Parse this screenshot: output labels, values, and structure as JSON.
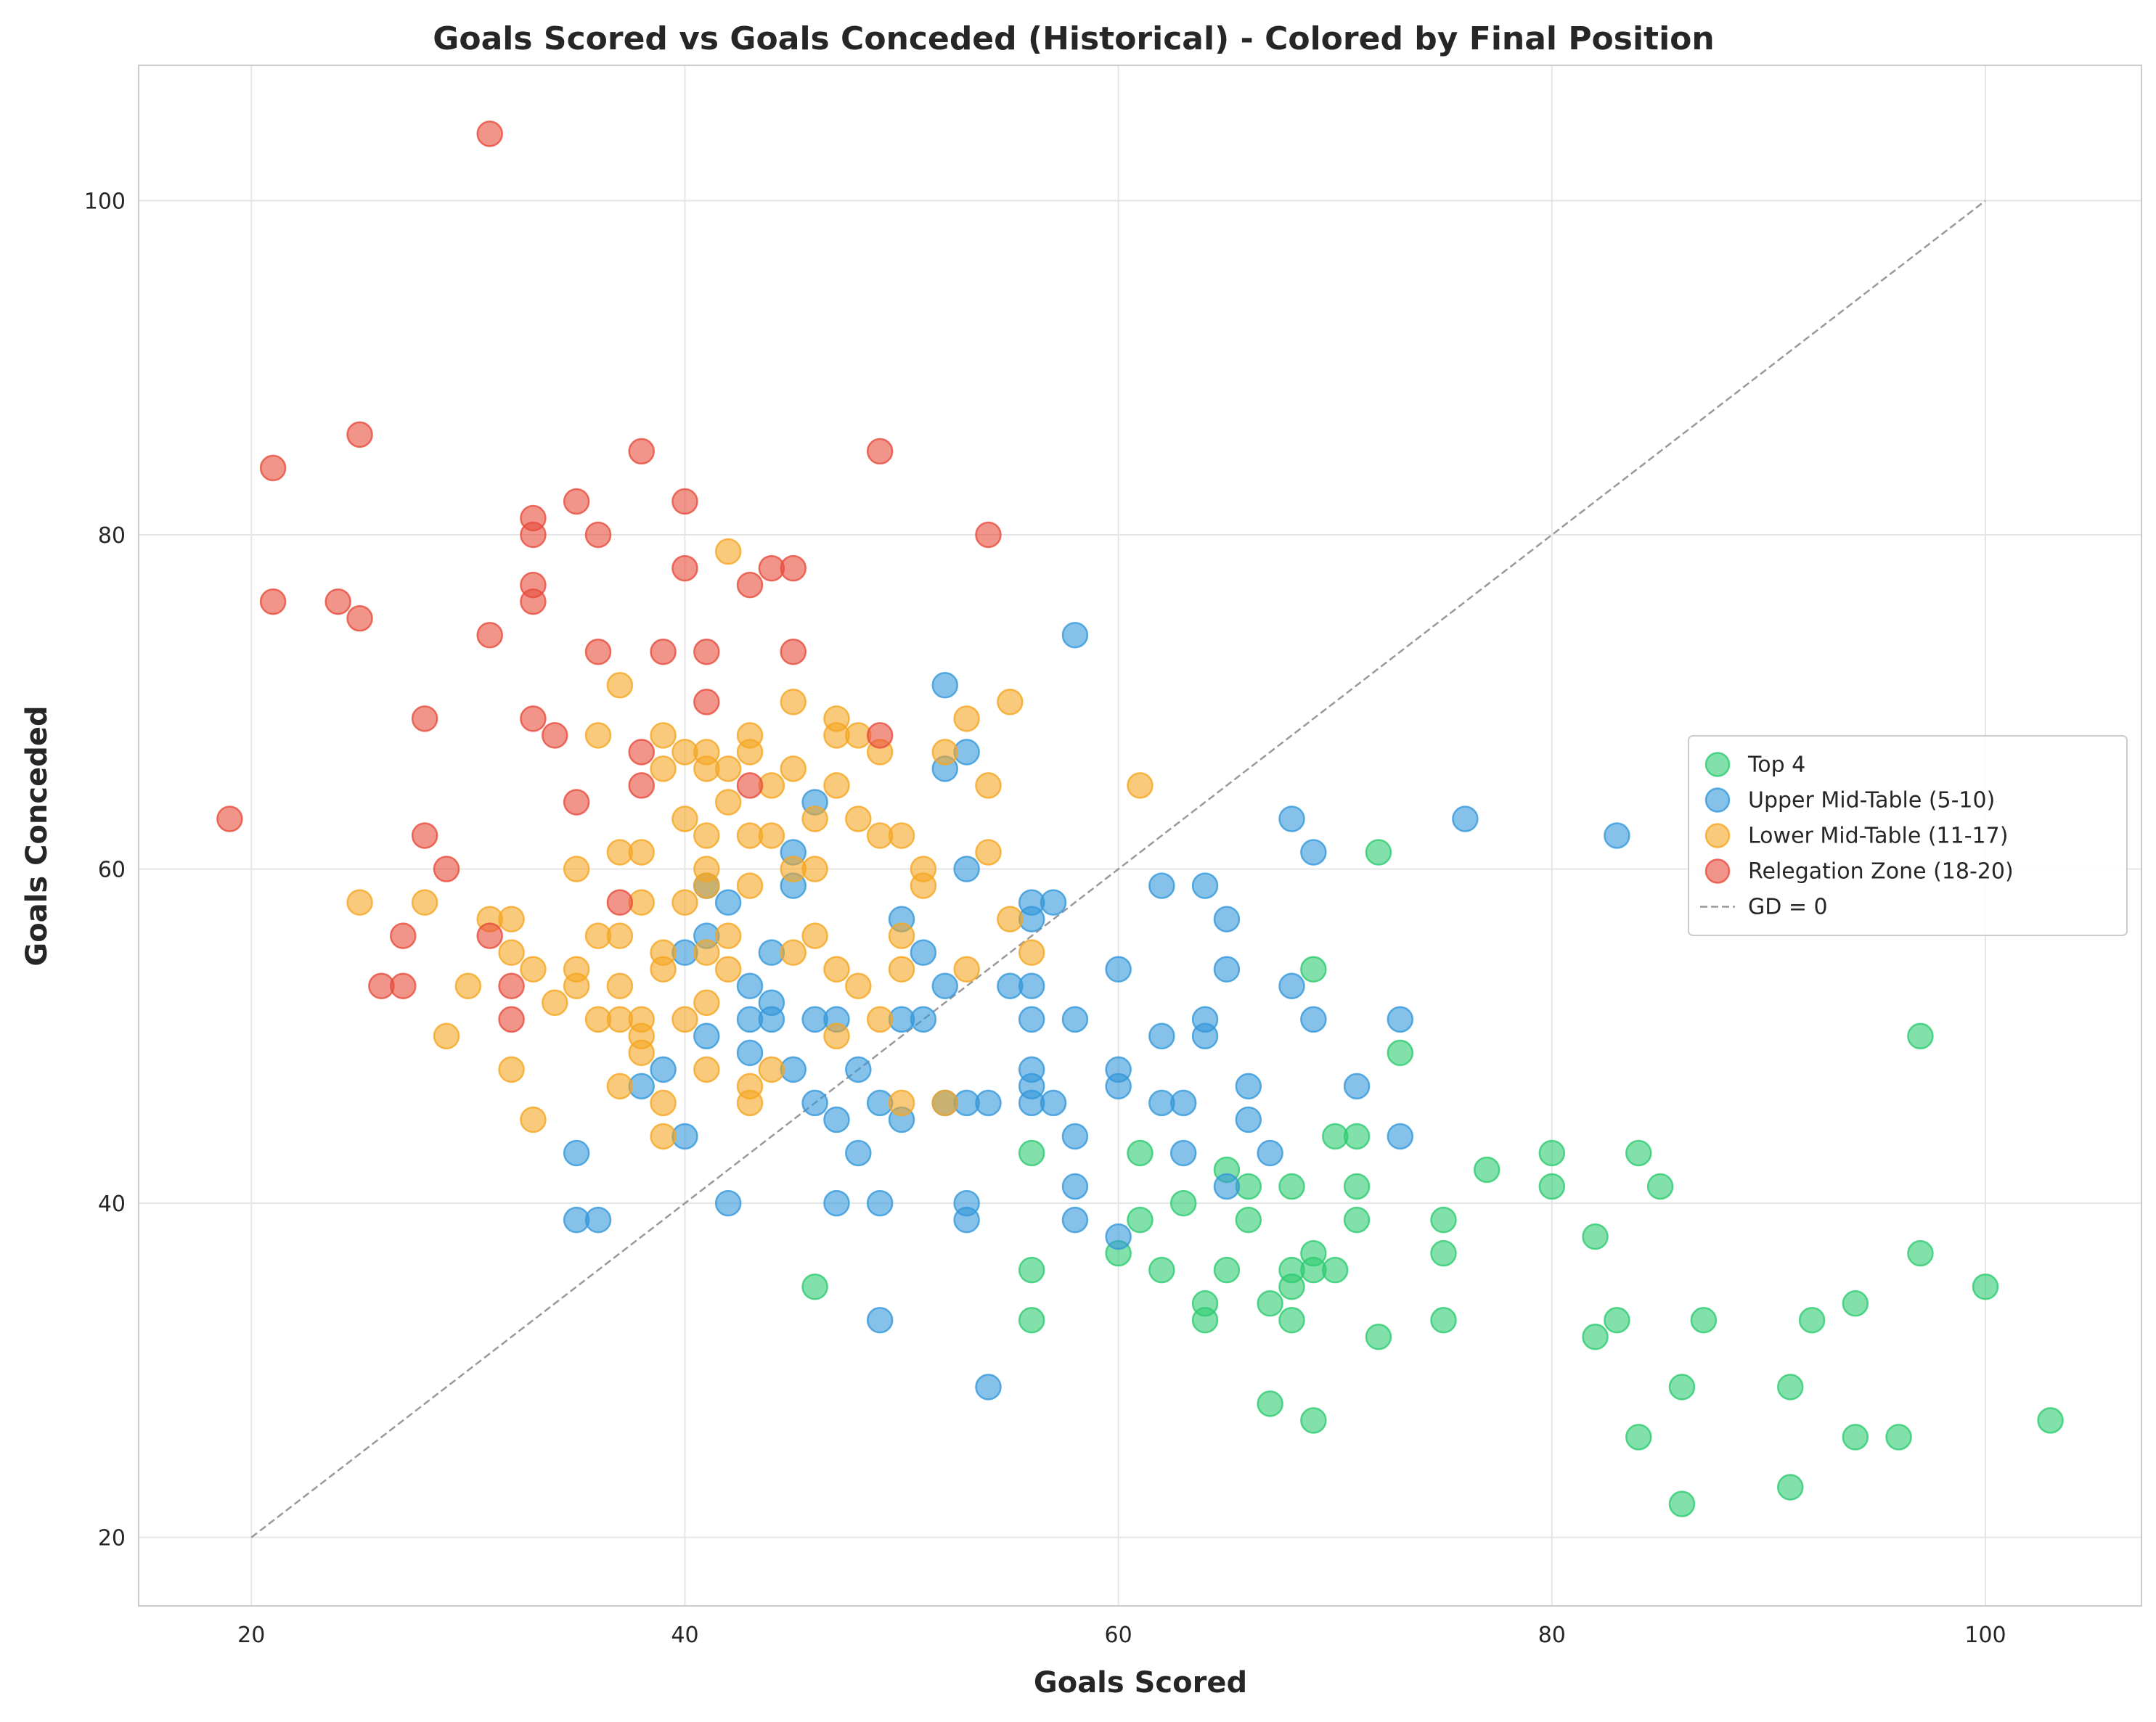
{
  "chart_data": {
    "type": "scatter",
    "title": "Goals Scored vs Goals Conceded (Historical) - Colored by Final Position",
    "xlabel": "Goals Scored",
    "ylabel": "Goals Conceded",
    "xlim": [
      14.8,
      107.2
    ],
    "ylim": [
      15.9,
      108.1
    ],
    "xticks": [
      20,
      40,
      60,
      80,
      100
    ],
    "yticks": [
      20,
      40,
      60,
      80,
      100
    ],
    "grid": true,
    "legend_position": "center-right",
    "reference_line": {
      "name": "GD = 0",
      "from": [
        20,
        20
      ],
      "to": [
        100,
        100
      ],
      "color": "#999999",
      "style": "dashed"
    },
    "series": [
      {
        "name": "Top 4",
        "color": "#2ecc71",
        "points": [
          [
            46,
            35
          ],
          [
            56,
            43
          ],
          [
            56,
            36
          ],
          [
            56,
            33
          ],
          [
            60,
            37
          ],
          [
            61,
            43
          ],
          [
            61,
            39
          ],
          [
            62,
            36
          ],
          [
            63,
            40
          ],
          [
            64,
            34
          ],
          [
            64,
            33
          ],
          [
            65,
            42
          ],
          [
            65,
            36
          ],
          [
            66,
            41
          ],
          [
            66,
            39
          ],
          [
            67,
            34
          ],
          [
            67,
            28
          ],
          [
            68,
            41
          ],
          [
            68,
            36
          ],
          [
            68,
            35
          ],
          [
            68,
            33
          ],
          [
            69,
            54
          ],
          [
            69,
            37
          ],
          [
            69,
            36
          ],
          [
            69,
            27
          ],
          [
            70,
            44
          ],
          [
            70,
            36
          ],
          [
            71,
            44
          ],
          [
            71,
            41
          ],
          [
            71,
            39
          ],
          [
            72,
            61
          ],
          [
            72,
            32
          ],
          [
            73,
            49
          ],
          [
            75,
            39
          ],
          [
            75,
            37
          ],
          [
            75,
            33
          ],
          [
            77,
            42
          ],
          [
            80,
            43
          ],
          [
            80,
            41
          ],
          [
            82,
            38
          ],
          [
            82,
            32
          ],
          [
            83,
            33
          ],
          [
            84,
            43
          ],
          [
            84,
            26
          ],
          [
            85,
            41
          ],
          [
            86,
            29
          ],
          [
            86,
            22
          ],
          [
            87,
            33
          ],
          [
            91,
            29
          ],
          [
            91,
            23
          ],
          [
            92,
            33
          ],
          [
            94,
            34
          ],
          [
            94,
            26
          ],
          [
            96,
            26
          ],
          [
            97,
            50
          ],
          [
            97,
            37
          ],
          [
            100,
            35
          ],
          [
            103,
            27
          ]
        ]
      },
      {
        "name": "Upper Mid-Table (5-10)",
        "color": "#3498db",
        "points": [
          [
            35,
            43
          ],
          [
            35,
            39
          ],
          [
            36,
            39
          ],
          [
            38,
            47
          ],
          [
            39,
            48
          ],
          [
            40,
            55
          ],
          [
            40,
            44
          ],
          [
            41,
            59
          ],
          [
            41,
            56
          ],
          [
            41,
            50
          ],
          [
            42,
            58
          ],
          [
            42,
            40
          ],
          [
            43,
            53
          ],
          [
            43,
            51
          ],
          [
            43,
            49
          ],
          [
            44,
            55
          ],
          [
            44,
            52
          ],
          [
            44,
            51
          ],
          [
            45,
            61
          ],
          [
            45,
            59
          ],
          [
            45,
            48
          ],
          [
            46,
            64
          ],
          [
            46,
            51
          ],
          [
            46,
            46
          ],
          [
            47,
            51
          ],
          [
            47,
            45
          ],
          [
            47,
            40
          ],
          [
            48,
            48
          ],
          [
            48,
            43
          ],
          [
            49,
            46
          ],
          [
            49,
            40
          ],
          [
            49,
            33
          ],
          [
            50,
            57
          ],
          [
            50,
            51
          ],
          [
            50,
            45
          ],
          [
            51,
            55
          ],
          [
            51,
            51
          ],
          [
            52,
            71
          ],
          [
            52,
            66
          ],
          [
            52,
            53
          ],
          [
            52,
            46
          ],
          [
            53,
            67
          ],
          [
            53,
            60
          ],
          [
            53,
            46
          ],
          [
            53,
            40
          ],
          [
            53,
            39
          ],
          [
            54,
            46
          ],
          [
            54,
            29
          ],
          [
            55,
            53
          ],
          [
            56,
            58
          ],
          [
            56,
            57
          ],
          [
            56,
            53
          ],
          [
            56,
            51
          ],
          [
            56,
            48
          ],
          [
            56,
            47
          ],
          [
            56,
            46
          ],
          [
            57,
            58
          ],
          [
            57,
            46
          ],
          [
            58,
            74
          ],
          [
            58,
            51
          ],
          [
            58,
            44
          ],
          [
            58,
            41
          ],
          [
            58,
            39
          ],
          [
            60,
            54
          ],
          [
            60,
            48
          ],
          [
            60,
            47
          ],
          [
            60,
            38
          ],
          [
            62,
            59
          ],
          [
            62,
            50
          ],
          [
            62,
            46
          ],
          [
            63,
            46
          ],
          [
            63,
            43
          ],
          [
            64,
            59
          ],
          [
            64,
            51
          ],
          [
            64,
            50
          ],
          [
            65,
            57
          ],
          [
            65,
            54
          ],
          [
            65,
            41
          ],
          [
            66,
            47
          ],
          [
            66,
            45
          ],
          [
            67,
            43
          ],
          [
            68,
            63
          ],
          [
            68,
            53
          ],
          [
            69,
            61
          ],
          [
            69,
            51
          ],
          [
            71,
            47
          ],
          [
            73,
            51
          ],
          [
            73,
            44
          ],
          [
            76,
            63
          ],
          [
            83,
            62
          ]
        ]
      },
      {
        "name": "Lower Mid-Table (11-17)",
        "color": "#f5a623",
        "points": [
          [
            25,
            58
          ],
          [
            28,
            58
          ],
          [
            29,
            50
          ],
          [
            30,
            53
          ],
          [
            31,
            57
          ],
          [
            32,
            57
          ],
          [
            32,
            55
          ],
          [
            32,
            48
          ],
          [
            33,
            54
          ],
          [
            33,
            45
          ],
          [
            34,
            52
          ],
          [
            35,
            60
          ],
          [
            35,
            54
          ],
          [
            35,
            53
          ],
          [
            36,
            68
          ],
          [
            36,
            56
          ],
          [
            36,
            51
          ],
          [
            37,
            71
          ],
          [
            37,
            61
          ],
          [
            37,
            56
          ],
          [
            37,
            53
          ],
          [
            37,
            51
          ],
          [
            37,
            47
          ],
          [
            38,
            61
          ],
          [
            38,
            58
          ],
          [
            38,
            51
          ],
          [
            38,
            50
          ],
          [
            38,
            49
          ],
          [
            39,
            68
          ],
          [
            39,
            66
          ],
          [
            39,
            55
          ],
          [
            39,
            54
          ],
          [
            39,
            46
          ],
          [
            39,
            44
          ],
          [
            40,
            67
          ],
          [
            40,
            63
          ],
          [
            40,
            58
          ],
          [
            40,
            51
          ],
          [
            41,
            67
          ],
          [
            41,
            66
          ],
          [
            41,
            62
          ],
          [
            41,
            60
          ],
          [
            41,
            59
          ],
          [
            41,
            55
          ],
          [
            41,
            52
          ],
          [
            41,
            48
          ],
          [
            42,
            79
          ],
          [
            42,
            66
          ],
          [
            42,
            64
          ],
          [
            42,
            56
          ],
          [
            42,
            54
          ],
          [
            43,
            68
          ],
          [
            43,
            67
          ],
          [
            43,
            62
          ],
          [
            43,
            59
          ],
          [
            43,
            47
          ],
          [
            43,
            46
          ],
          [
            44,
            65
          ],
          [
            44,
            62
          ],
          [
            44,
            48
          ],
          [
            45,
            70
          ],
          [
            45,
            66
          ],
          [
            45,
            60
          ],
          [
            45,
            55
          ],
          [
            46,
            63
          ],
          [
            46,
            60
          ],
          [
            46,
            56
          ],
          [
            47,
            69
          ],
          [
            47,
            68
          ],
          [
            47,
            65
          ],
          [
            47,
            54
          ],
          [
            47,
            50
          ],
          [
            48,
            68
          ],
          [
            48,
            63
          ],
          [
            48,
            53
          ],
          [
            49,
            67
          ],
          [
            49,
            62
          ],
          [
            49,
            51
          ],
          [
            50,
            62
          ],
          [
            50,
            56
          ],
          [
            50,
            54
          ],
          [
            50,
            46
          ],
          [
            51,
            60
          ],
          [
            51,
            59
          ],
          [
            52,
            67
          ],
          [
            52,
            46
          ],
          [
            53,
            69
          ],
          [
            53,
            54
          ],
          [
            54,
            65
          ],
          [
            54,
            61
          ],
          [
            55,
            70
          ],
          [
            55,
            57
          ],
          [
            56,
            55
          ],
          [
            61,
            65
          ]
        ]
      },
      {
        "name": "Relegation Zone (18-20)",
        "color": "#e74c3c",
        "points": [
          [
            19,
            63
          ],
          [
            21,
            84
          ],
          [
            21,
            76
          ],
          [
            24,
            76
          ],
          [
            25,
            86
          ],
          [
            25,
            75
          ],
          [
            26,
            53
          ],
          [
            27,
            56
          ],
          [
            27,
            53
          ],
          [
            28,
            69
          ],
          [
            28,
            62
          ],
          [
            29,
            60
          ],
          [
            31,
            104
          ],
          [
            31,
            74
          ],
          [
            31,
            56
          ],
          [
            32,
            53
          ],
          [
            32,
            51
          ],
          [
            33,
            81
          ],
          [
            33,
            80
          ],
          [
            33,
            77
          ],
          [
            33,
            76
          ],
          [
            33,
            69
          ],
          [
            34,
            68
          ],
          [
            35,
            82
          ],
          [
            35,
            64
          ],
          [
            36,
            80
          ],
          [
            36,
            73
          ],
          [
            37,
            58
          ],
          [
            38,
            85
          ],
          [
            38,
            67
          ],
          [
            38,
            65
          ],
          [
            39,
            73
          ],
          [
            40,
            82
          ],
          [
            40,
            78
          ],
          [
            41,
            73
          ],
          [
            41,
            70
          ],
          [
            43,
            77
          ],
          [
            43,
            65
          ],
          [
            44,
            78
          ],
          [
            45,
            78
          ],
          [
            45,
            73
          ],
          [
            49,
            85
          ],
          [
            49,
            68
          ],
          [
            54,
            80
          ]
        ]
      }
    ]
  }
}
